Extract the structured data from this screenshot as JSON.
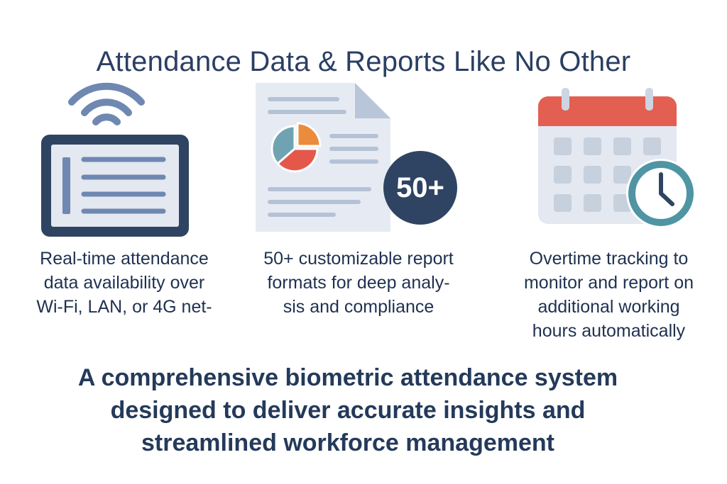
{
  "title": "Attendance Data & Reports Like No Other",
  "features": [
    {
      "icon": "wifi-tablet-icon",
      "caption_lines": [
        "Real-time attendance",
        "data availability over",
        "Wi-Fi, LAN, or 4G net-"
      ]
    },
    {
      "icon": "report-document-icon",
      "badge": "50+",
      "caption_lines": [
        "50+ customizable report",
        "formats for deep analy-",
        "sis and compliance"
      ]
    },
    {
      "icon": "calendar-clock-icon",
      "caption_lines": [
        "Overtime tracking to",
        "monitor and report on",
        "additional working",
        "hours automatically"
      ]
    }
  ],
  "tagline_lines": [
    "A comprehensive biometric attendance system",
    "designed to deliver accurate insights and",
    "streamlined workforce management"
  ],
  "colors": {
    "navy": "#2f4463",
    "slate_blue": "#6f88b2",
    "light_panel": "#e3e8f1",
    "pie_teal": "#6fa3b2",
    "pie_orange": "#ec8b3c",
    "pie_red": "#e4584b",
    "calendar_red": "#e35f51",
    "clock_teal": "#4f95a3"
  }
}
